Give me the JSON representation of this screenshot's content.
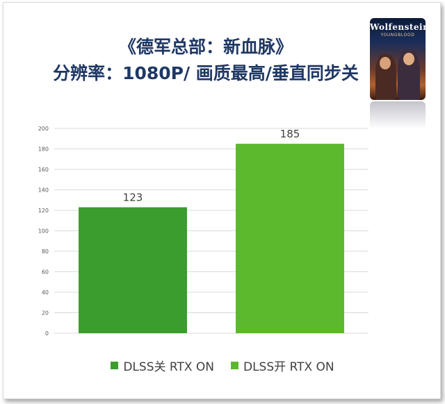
{
  "title_line1": "《德军总部：新血脉》",
  "title_line2": "分辨率：1080P/ 画质最高/垂直同步关",
  "cover": {
    "title": "Wolfenstein",
    "subtitle": "YOUNGBLOOD"
  },
  "colors": {
    "title": "#1f3864",
    "series1": "#3a9d2d",
    "series2": "#5cb82d",
    "grid": "#d9d9d9"
  },
  "chart_data": {
    "type": "bar",
    "categories": [
      "DLSS关 RTX ON",
      "DLSS开 RTX ON"
    ],
    "values": [
      123,
      185
    ],
    "ylim": [
      0,
      200
    ],
    "yticks": [
      0,
      20,
      40,
      60,
      80,
      100,
      120,
      140,
      160,
      180,
      200
    ],
    "grid": true,
    "legend_position": "bottom",
    "legend": [
      "DLSS关 RTX ON",
      "DLSS开 RTX ON"
    ]
  }
}
